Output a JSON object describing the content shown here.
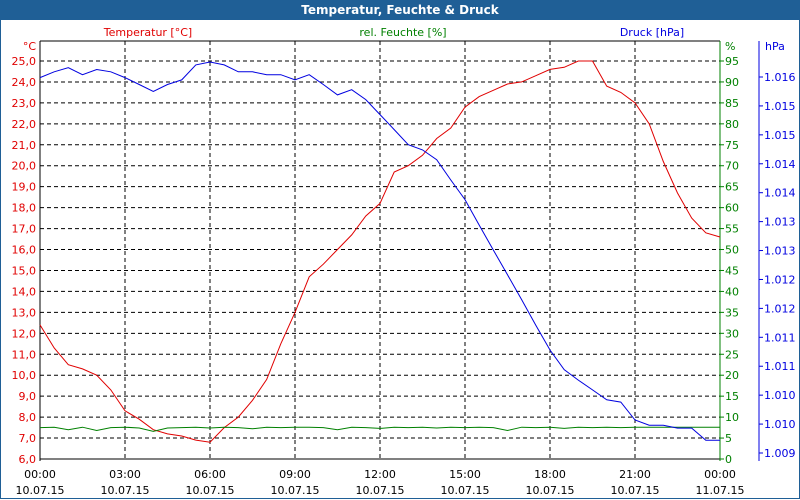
{
  "window": {
    "title": "Temperatur, Feuchte & Druck"
  },
  "chart_data": {
    "type": "line",
    "title": "Temperatur, Feuchte & Druck",
    "colors": {
      "temperature": "#e00000",
      "humidity": "#008000",
      "pressure": "#0000e0",
      "title_bar": "#1f5f96"
    },
    "axes": {
      "temperature": {
        "label": "Temperatur [°C]",
        "unit": "°C",
        "range": [
          6.0,
          25.0
        ],
        "ticks": [
          "6,0",
          "7,0",
          "8,0",
          "9,0",
          "10,0",
          "11,0",
          "12,0",
          "13,0",
          "14,0",
          "15,0",
          "16,0",
          "17,0",
          "18,0",
          "19,0",
          "20,0",
          "21,0",
          "22,0",
          "23,0",
          "24,0",
          "25,0"
        ]
      },
      "humidity": {
        "label": "rel. Feuchte [%]",
        "unit": "%",
        "range": [
          0,
          95
        ],
        "ticks": [
          "0",
          "5",
          "10",
          "15",
          "20",
          "25",
          "30",
          "35",
          "40",
          "45",
          "50",
          "55",
          "60",
          "65",
          "70",
          "75",
          "80",
          "85",
          "90",
          "95"
        ]
      },
      "pressure": {
        "label": "Druck [hPa]",
        "unit": "hPa",
        "range": [
          1009.5,
          1016.0
        ],
        "ticks": [
          "1.009",
          "1.010",
          "1.010",
          "1.011",
          "1.011",
          "1.012",
          "1.012",
          "1.013",
          "1.013",
          "1.014",
          "1.014",
          "1.015",
          "1.015",
          "1.016"
        ]
      },
      "x": {
        "range": [
          0,
          24
        ],
        "ticks": [
          {
            "time": "00:00",
            "date": "10.07.15"
          },
          {
            "time": "03:00",
            "date": "10.07.15"
          },
          {
            "time": "06:00",
            "date": "10.07.15"
          },
          {
            "time": "09:00",
            "date": "10.07.15"
          },
          {
            "time": "12:00",
            "date": "10.07.15"
          },
          {
            "time": "15:00",
            "date": "10.07.15"
          },
          {
            "time": "18:00",
            "date": "10.07.15"
          },
          {
            "time": "21:00",
            "date": "10.07.15"
          },
          {
            "time": "00:00",
            "date": "11.07.15"
          }
        ]
      }
    },
    "grid": true,
    "x_hours": [
      0,
      0.5,
      1,
      1.5,
      2,
      2.5,
      3,
      3.5,
      4,
      4.5,
      5,
      5.5,
      6,
      6.5,
      7,
      7.5,
      8,
      8.5,
      9,
      9.5,
      10,
      10.5,
      11,
      11.5,
      12,
      12.5,
      13,
      13.5,
      14,
      14.5,
      15,
      15.5,
      16,
      16.5,
      17,
      17.5,
      18,
      18.5,
      19,
      19.5,
      20,
      20.5,
      21,
      21.5,
      22,
      22.5,
      23,
      23.5,
      24
    ],
    "series": [
      {
        "name": "Temperatur",
        "axis": "temperature",
        "values": [
          12.4,
          11.3,
          10.5,
          10.3,
          10.0,
          9.3,
          8.3,
          7.9,
          7.4,
          7.2,
          7.1,
          6.9,
          6.8,
          7.5,
          8.0,
          8.8,
          9.8,
          11.5,
          13.0,
          14.7,
          15.3,
          16.0,
          16.7,
          17.6,
          18.2,
          19.7,
          20.0,
          20.5,
          21.3,
          21.8,
          22.8,
          23.3,
          23.6,
          23.9,
          24.0,
          24.3,
          24.6,
          24.7,
          25.0,
          25.0,
          23.8,
          23.5,
          23.0,
          22.0,
          20.2,
          18.7,
          17.5,
          16.8,
          16.6
        ]
      },
      {
        "name": "rel. Feuchte",
        "axis": "humidity",
        "values": [
          7.5,
          7.6,
          7.0,
          7.6,
          6.8,
          7.5,
          7.6,
          7.4,
          6.6,
          7.4,
          7.5,
          7.6,
          7.4,
          7.6,
          7.5,
          7.2,
          7.6,
          7.5,
          7.6,
          7.6,
          7.5,
          7.0,
          7.6,
          7.5,
          7.3,
          7.6,
          7.5,
          7.6,
          7.4,
          7.6,
          7.5,
          7.6,
          7.5,
          6.8,
          7.6,
          7.5,
          7.6,
          7.3,
          7.6,
          7.5,
          7.6,
          7.5,
          7.6,
          7.6,
          7.6,
          7.6,
          7.6,
          7.6,
          7.6
        ]
      },
      {
        "name": "Druck",
        "axis": "pressure",
        "values": [
          1015.99,
          1016.09,
          1016.16,
          1016.04,
          1016.13,
          1016.09,
          1015.99,
          1015.87,
          1015.75,
          1015.87,
          1015.95,
          1016.21,
          1016.26,
          1016.21,
          1016.09,
          1016.09,
          1016.04,
          1016.04,
          1015.95,
          1016.04,
          1015.87,
          1015.69,
          1015.78,
          1015.61,
          1015.35,
          1015.09,
          1014.83,
          1014.74,
          1014.57,
          1014.22,
          1013.88,
          1013.44,
          1013.01,
          1012.58,
          1012.15,
          1011.71,
          1011.28,
          1010.94,
          1010.76,
          1010.59,
          1010.42,
          1010.38,
          1010.07,
          1009.98,
          1009.98,
          1009.93,
          1009.93,
          1009.72,
          1009.72
        ]
      }
    ]
  }
}
